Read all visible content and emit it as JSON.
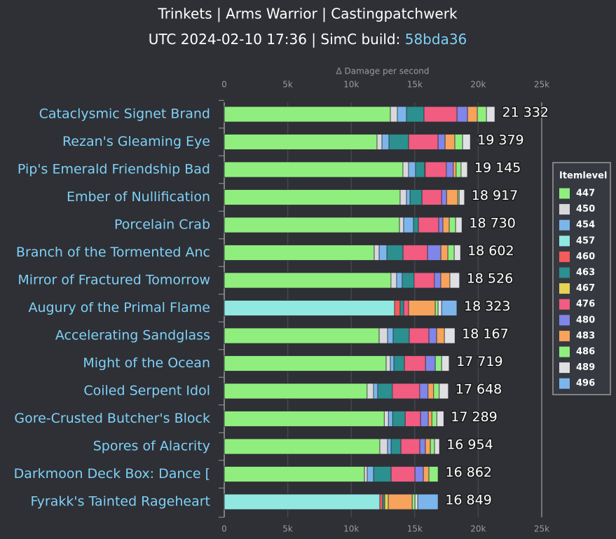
{
  "chart_data": {
    "type": "stacked_bar_horizontal",
    "title": "Trinkets | Arms Warrior | Castingpatchwerk",
    "subtitle": "UTC 2024-02-10 17:36 | SimC build:",
    "subtitle_link": "58bda36",
    "x_label": "Δ Damage per second",
    "legend_title": "Itemlevel",
    "legend": "right",
    "grid": true,
    "categories": [
      "Cataclysmic Signet Brand",
      "Rezan's Gleaming Eye",
      "Pip's Emerald Friendship Bad",
      "Ember of Nullification",
      "Porcelain Crab",
      "Branch of the Tormented Anc",
      "Mirror of Fractured Tomorrow",
      "Augury of the Primal Flame",
      "Accelerating Sandglass",
      "Might of the Ocean",
      "Coiled Serpent Idol",
      "Gore-Crusted Butcher's Block",
      "Spores of Alacrity",
      "Darkmoon Deck Box: Dance [",
      "Fyrakk's Tainted Rageheart"
    ],
    "totals": [
      21332,
      19379,
      19145,
      18917,
      18730,
      18602,
      18526,
      18323,
      18167,
      17719,
      17648,
      17289,
      16954,
      16862,
      16849
    ],
    "total_labels": [
      "21 332",
      "19 379",
      "19 145",
      "18 917",
      "18 730",
      "18 602",
      "18 526",
      "18 323",
      "18 167",
      "17 719",
      "17 648",
      "17 289",
      "16 954",
      "16 862",
      "16 849"
    ],
    "xlim": [
      0,
      25000
    ],
    "xticks": [
      0,
      {
        "value": 5000,
        "label": "5k"
      },
      {
        "value": 10000,
        "label": "10k"
      },
      {
        "value": 15000,
        "label": "15k"
      },
      {
        "value": 20000,
        "label": "20k"
      },
      {
        "value": 25000,
        "label": "25k"
      }
    ],
    "series": [
      {
        "name": "447",
        "color": "#90ee7e",
        "values": [
          13080,
          12030,
          14070,
          13850,
          13800,
          11810,
          13130,
          null,
          12200,
          12750,
          11250,
          12600,
          12250,
          11040,
          null
        ]
      },
      {
        "name": "450",
        "color": "#d8d8dc",
        "values": [
          550,
          390,
          440,
          500,
          330,
          390,
          440,
          null,
          660,
          330,
          500,
          330,
          610,
          220,
          null
        ]
      },
      {
        "name": "454",
        "color": "#7cb5ec",
        "values": [
          720,
          550,
          550,
          280,
          770,
          610,
          440,
          null,
          440,
          280,
          330,
          330,
          280,
          500,
          null
        ]
      },
      {
        "name": "457",
        "color": "#91e8e1",
        "values": [
          null,
          null,
          null,
          null,
          null,
          null,
          null,
          13410,
          null,
          null,
          null,
          null,
          null,
          null,
          12250
        ]
      },
      {
        "name": "460",
        "color": "#f45b5b",
        "values": [
          null,
          null,
          null,
          null,
          null,
          null,
          null,
          440,
          null,
          null,
          null,
          null,
          null,
          null,
          220
        ]
      },
      {
        "name": "463",
        "color": "#2b908f",
        "values": [
          1380,
          1550,
          720,
          940,
          390,
          1270,
          940,
          280,
          1270,
          830,
          1160,
          990,
          770,
          1380,
          170
        ]
      },
      {
        "name": "467",
        "color": "#e4d354",
        "values": [
          null,
          null,
          50,
          null,
          null,
          null,
          null,
          null,
          null,
          null,
          null,
          null,
          null,
          null,
          280
        ]
      },
      {
        "name": "476",
        "color": "#f15c80",
        "values": [
          2600,
          2320,
          1660,
          1550,
          1600,
          1930,
          1600,
          390,
          1550,
          1660,
          2150,
          1210,
          1490,
          1880,
          null
        ]
      },
      {
        "name": "480",
        "color": "#8085e9",
        "values": [
          830,
          550,
          550,
          390,
          330,
          1050,
          500,
          null,
          610,
          770,
          660,
          610,
          440,
          660,
          null
        ]
      },
      {
        "name": "483",
        "color": "#f7a35c",
        "values": [
          770,
          770,
          220,
          880,
          500,
          550,
          720,
          2100,
          610,
          null,
          440,
          280,
          390,
          440,
          1880
        ]
      },
      {
        "name": "486",
        "color": "#90ee7e",
        "values": [
          720,
          610,
          390,
          110,
          500,
          500,
          null,
          220,
          null,
          500,
          440,
          390,
          330,
          720,
          220
        ]
      },
      {
        "name": "489",
        "color": "#e0e0e3",
        "values": [
          660,
          610,
          500,
          420,
          500,
          500,
          760,
          280,
          830,
          590,
          720,
          550,
          390,
          null,
          220
        ]
      },
      {
        "name": "496",
        "color": "#7cb5ec",
        "values": [
          null,
          null,
          null,
          null,
          null,
          null,
          null,
          1200,
          null,
          null,
          null,
          null,
          null,
          null,
          1600
        ]
      }
    ]
  }
}
